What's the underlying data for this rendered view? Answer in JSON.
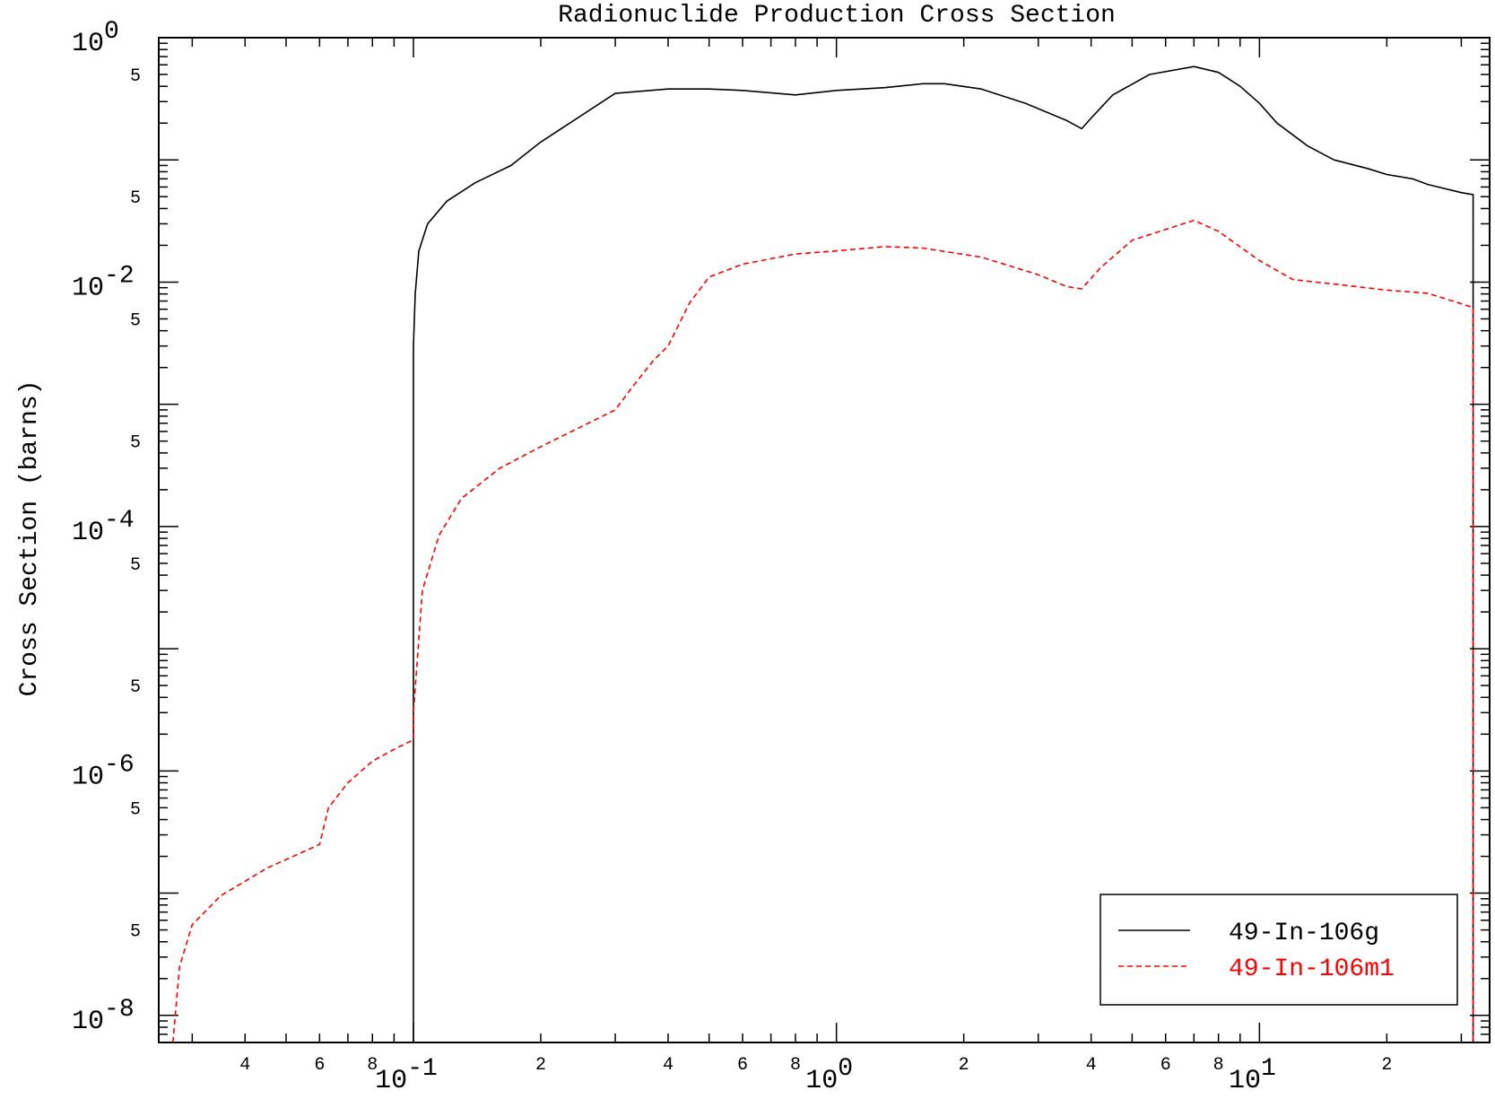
{
  "chart_data": {
    "type": "line",
    "title": "Radionuclide Production Cross Section",
    "xlabel": "",
    "ylabel": "Cross Section (barns)",
    "x_scale": "log",
    "y_scale": "log",
    "xlim": [
      0.025,
      35
    ],
    "ylim": [
      6e-09,
      1
    ],
    "x_ticks": [
      {
        "value": 0.1,
        "base": "10",
        "exp": "-1"
      },
      {
        "value": 1,
        "base": "10",
        "exp": "0"
      },
      {
        "value": 10,
        "base": "10",
        "exp": "1"
      }
    ],
    "x_minor_labels": [
      {
        "value": 0.04,
        "label": "4"
      },
      {
        "value": 0.06,
        "label": "6"
      },
      {
        "value": 0.08,
        "label": "8"
      },
      {
        "value": 0.2,
        "label": "2"
      },
      {
        "value": 0.4,
        "label": "4"
      },
      {
        "value": 0.6,
        "label": "6"
      },
      {
        "value": 0.8,
        "label": "8"
      },
      {
        "value": 2,
        "label": "2"
      },
      {
        "value": 4,
        "label": "4"
      },
      {
        "value": 6,
        "label": "6"
      },
      {
        "value": 8,
        "label": "8"
      },
      {
        "value": 20,
        "label": "2"
      }
    ],
    "y_ticks": [
      {
        "value": 1,
        "base": "10",
        "exp": "0"
      },
      {
        "value": 0.01,
        "base": "10",
        "exp": "-2"
      },
      {
        "value": 0.0001,
        "base": "10",
        "exp": "-4"
      },
      {
        "value": 1e-06,
        "base": "10",
        "exp": "-6"
      },
      {
        "value": 1e-08,
        "base": "10",
        "exp": "-8"
      }
    ],
    "y_minor_labels": [
      {
        "value": 0.5,
        "label": "5"
      },
      {
        "value": 0.05,
        "label": "5"
      },
      {
        "value": 0.005,
        "label": "5"
      },
      {
        "value": 0.0005,
        "label": "5"
      },
      {
        "value": 5e-05,
        "label": "5"
      },
      {
        "value": 5e-06,
        "label": "5"
      },
      {
        "value": 5e-07,
        "label": "5"
      },
      {
        "value": 5e-08,
        "label": "5"
      }
    ],
    "legend_position": "bottom-right",
    "series": [
      {
        "name": "49-In-106g",
        "color": "#000000",
        "dash": "solid",
        "points": [
          [
            0.1,
            6e-09
          ],
          [
            0.1,
            0.003
          ],
          [
            0.101,
            0.008
          ],
          [
            0.103,
            0.018
          ],
          [
            0.108,
            0.03
          ],
          [
            0.12,
            0.046
          ],
          [
            0.14,
            0.065
          ],
          [
            0.17,
            0.09
          ],
          [
            0.2,
            0.14
          ],
          [
            0.3,
            0.35
          ],
          [
            0.4,
            0.38
          ],
          [
            0.5,
            0.38
          ],
          [
            0.6,
            0.37
          ],
          [
            0.8,
            0.34
          ],
          [
            1.0,
            0.37
          ],
          [
            1.3,
            0.39
          ],
          [
            1.6,
            0.42
          ],
          [
            1.8,
            0.42
          ],
          [
            2.2,
            0.38
          ],
          [
            2.8,
            0.29
          ],
          [
            3.5,
            0.21
          ],
          [
            3.8,
            0.18
          ],
          [
            4.0,
            0.22
          ],
          [
            4.5,
            0.34
          ],
          [
            5.5,
            0.5
          ],
          [
            7.0,
            0.58
          ],
          [
            8.0,
            0.52
          ],
          [
            9.0,
            0.4
          ],
          [
            10.0,
            0.29
          ],
          [
            11.0,
            0.2
          ],
          [
            13.0,
            0.13
          ],
          [
            15.0,
            0.1
          ],
          [
            18.0,
            0.085
          ],
          [
            20.0,
            0.076
          ],
          [
            23.0,
            0.07
          ],
          [
            25.0,
            0.063
          ],
          [
            30.0,
            0.054
          ],
          [
            32.0,
            0.052
          ],
          [
            32.0,
            6e-09
          ]
        ]
      },
      {
        "name": "49-In-106m1",
        "color": "#ff0000",
        "dash": "dashed",
        "points": [
          [
            0.027,
            6e-09
          ],
          [
            0.028,
            2.5e-08
          ],
          [
            0.03,
            5.5e-08
          ],
          [
            0.035,
            9.5e-08
          ],
          [
            0.045,
            1.6e-07
          ],
          [
            0.06,
            2.5e-07
          ],
          [
            0.063,
            5e-07
          ],
          [
            0.07,
            8e-07
          ],
          [
            0.08,
            1.2e-06
          ],
          [
            0.09,
            1.5e-06
          ],
          [
            0.1,
            1.8e-06
          ],
          [
            0.1,
            3e-06
          ],
          [
            0.105,
            3e-05
          ],
          [
            0.115,
            8.5e-05
          ],
          [
            0.13,
            0.00017
          ],
          [
            0.16,
            0.0003
          ],
          [
            0.2,
            0.00045
          ],
          [
            0.3,
            0.0009
          ],
          [
            0.33,
            0.0014
          ],
          [
            0.37,
            0.0023
          ],
          [
            0.4,
            0.003
          ],
          [
            0.45,
            0.0068
          ],
          [
            0.5,
            0.011
          ],
          [
            0.6,
            0.014
          ],
          [
            0.8,
            0.017
          ],
          [
            1.0,
            0.018
          ],
          [
            1.3,
            0.0195
          ],
          [
            1.6,
            0.019
          ],
          [
            2.2,
            0.016
          ],
          [
            3.0,
            0.0115
          ],
          [
            3.5,
            0.0092
          ],
          [
            3.8,
            0.0088
          ],
          [
            4.2,
            0.013
          ],
          [
            5.0,
            0.022
          ],
          [
            7.0,
            0.032
          ],
          [
            8.0,
            0.026
          ],
          [
            10.0,
            0.015
          ],
          [
            12.0,
            0.0105
          ],
          [
            16.0,
            0.0094
          ],
          [
            20.0,
            0.0086
          ],
          [
            25.0,
            0.0081
          ],
          [
            32.0,
            0.0062
          ],
          [
            32.0,
            6e-09
          ]
        ]
      }
    ]
  }
}
